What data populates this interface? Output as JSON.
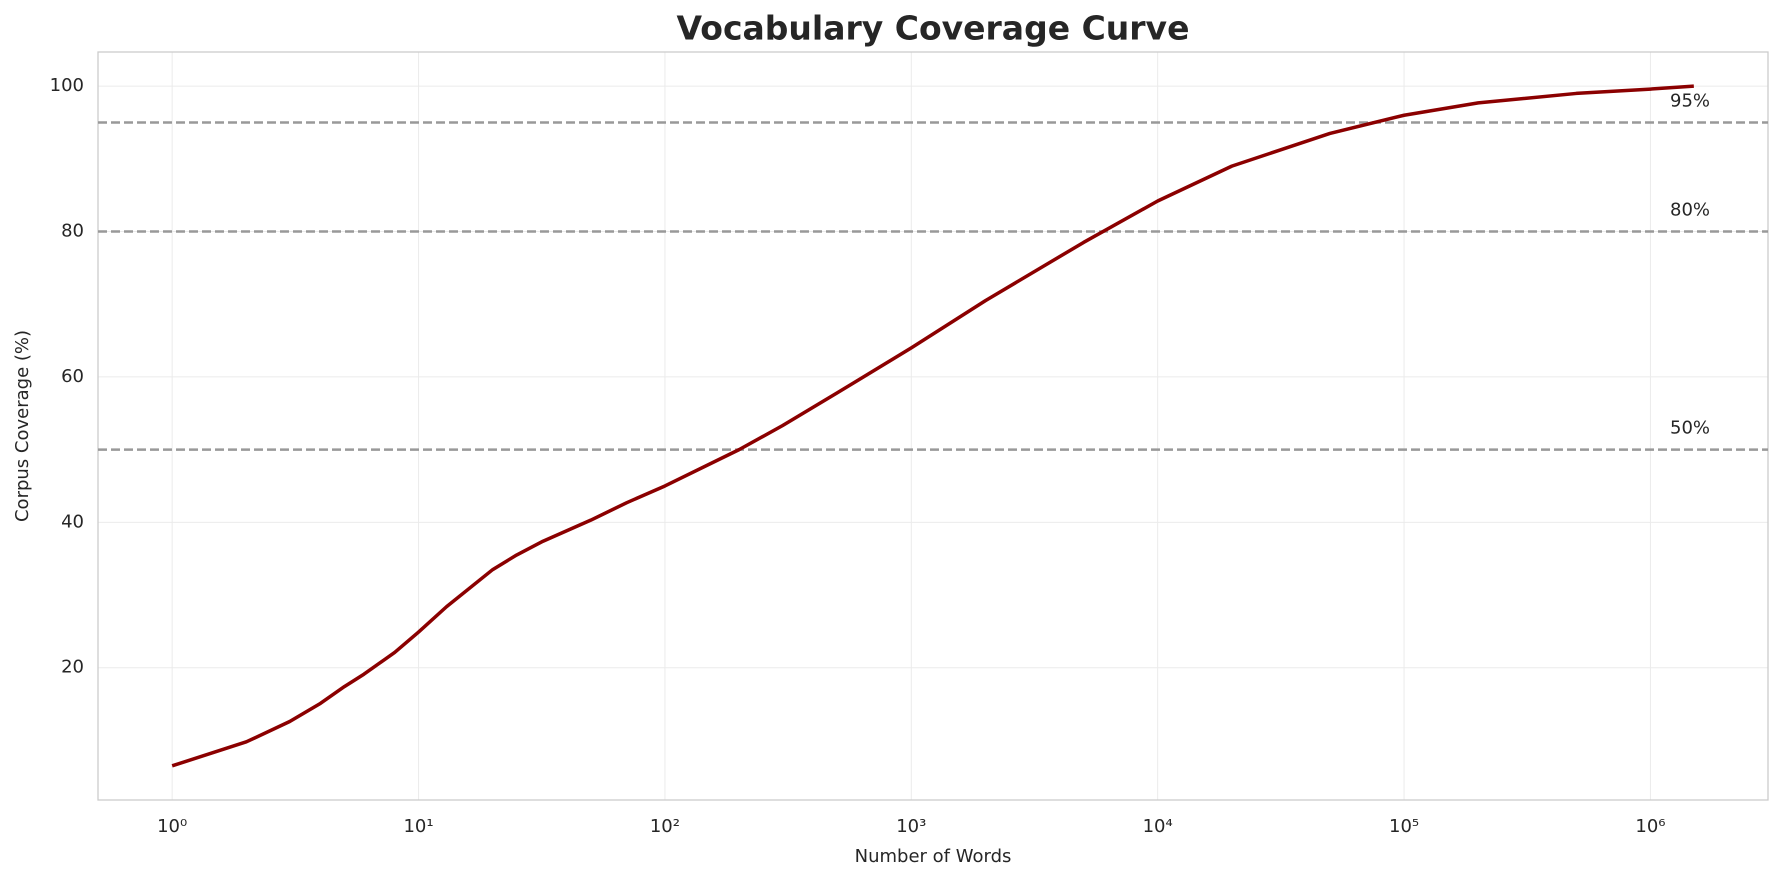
{
  "chart_data": {
    "type": "line",
    "title": "Vocabulary Coverage Curve",
    "x_label": "Number of Words",
    "y_label": "Corpus Coverage (%)",
    "x_scale": "log",
    "grid": true,
    "xlim": [
      0.5,
      3000000
    ],
    "ylim": [
      1.8,
      104.7
    ],
    "xticks": [
      {
        "value": 1,
        "label": "10⁰"
      },
      {
        "value": 10,
        "label": "10¹"
      },
      {
        "value": 100,
        "label": "10²"
      },
      {
        "value": 1000,
        "label": "10³"
      },
      {
        "value": 10000,
        "label": "10⁴"
      },
      {
        "value": 100000,
        "label": "10⁵"
      },
      {
        "value": 1000000,
        "label": "10⁶"
      }
    ],
    "yticks": [
      20,
      40,
      60,
      80,
      100
    ],
    "series": [
      {
        "color": "#8b0000",
        "x": [
          1,
          2,
          3,
          4,
          5,
          6,
          8,
          10,
          13,
          20,
          25,
          32,
          50,
          70,
          100,
          200,
          300,
          500,
          1000,
          2000,
          5000,
          10000,
          20000,
          50000,
          100000,
          200000,
          500000,
          1000000,
          1500000
        ],
        "values": [
          6.5,
          9.8,
          12.6,
          15.1,
          17.4,
          19.1,
          22.1,
          24.9,
          28.4,
          33.5,
          35.5,
          37.4,
          40.3,
          42.7,
          45,
          50,
          53.3,
          57.8,
          64,
          70.5,
          78.5,
          84.2,
          89,
          93.5,
          96,
          97.7,
          99,
          99.6,
          100
        ]
      }
    ],
    "hlines": [
      {
        "value": 95,
        "label": "95%"
      },
      {
        "value": 80,
        "label": "80%"
      },
      {
        "value": 50,
        "label": "50%"
      }
    ],
    "hline_color": "#999999"
  }
}
